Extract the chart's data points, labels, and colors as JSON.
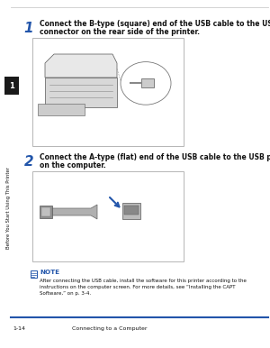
{
  "bg_color": "#ffffff",
  "sidebar_color": "#1a1a1a",
  "sidebar_text": "Before You Start Using This Printer",
  "chapter_num": "1",
  "chapter_box_color": "#1a1a1a",
  "step1_num": "1",
  "step1_text_line1": "Connect the B-type (square) end of the USB cable to the USB",
  "step1_text_line2": "connector on the rear side of the printer.",
  "step2_num": "2",
  "step2_text_line1": "Connect the A-type (flat) end of the USB cable to the USB port",
  "step2_text_line2": "on the computer.",
  "note_label": "NOTE",
  "note_line1": "After connecting the USB cable, install the software for this printer according to the",
  "note_line2": "instructions on the computer screen. For more details, see “Installing the CAPT",
  "note_line3": "Software,” on p. 3-4.",
  "footer_left": "1-14",
  "footer_right": "Connecting to a Computer",
  "step_num_color": "#2255aa",
  "note_color": "#2255aa",
  "text_color": "#111111",
  "top_line_color": "#cccccc",
  "bottom_line_color": "#2255aa",
  "img_border_color": "#aaaaaa",
  "img_bg_color": "#ffffff"
}
